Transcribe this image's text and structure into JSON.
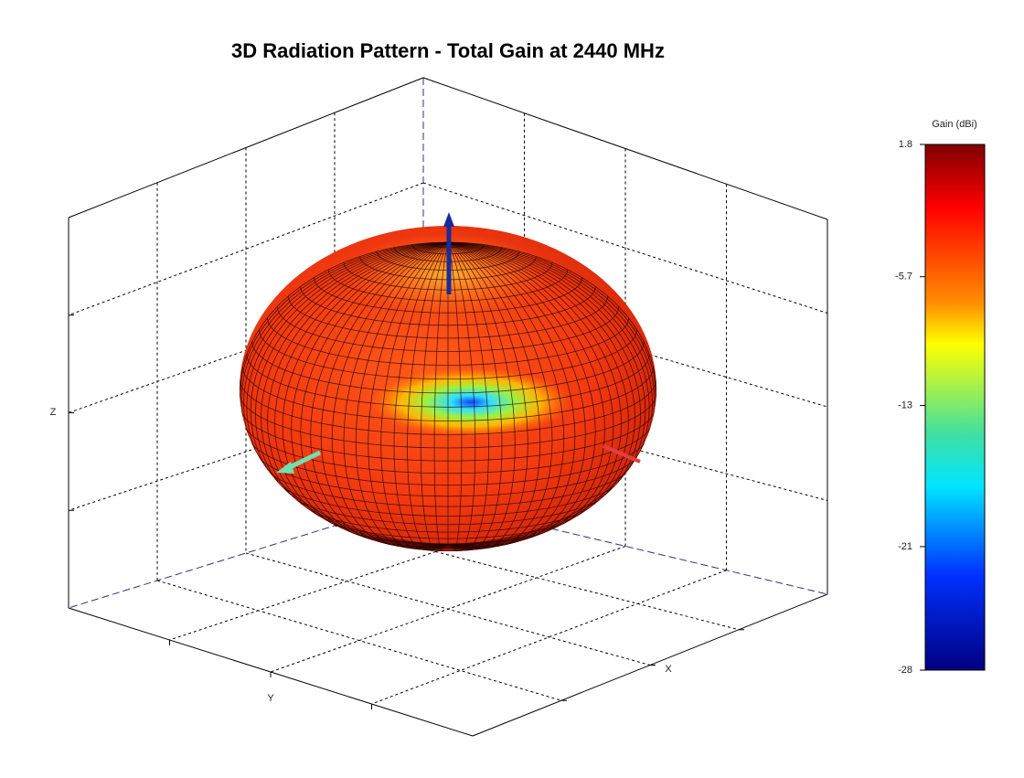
{
  "chart_data": {
    "type": "surface3d",
    "title": "3D Radiation Pattern - Total Gain at 2440 MHz",
    "xlabel": "X",
    "ylabel": "Y",
    "zlabel": "Z",
    "colorbar": {
      "title": "Gain (dBi)",
      "lim": [
        -28,
        1.8
      ],
      "ticks": [
        1.8,
        -5.7,
        -13,
        -21,
        -28
      ],
      "colormap": "jet"
    }
  }
}
